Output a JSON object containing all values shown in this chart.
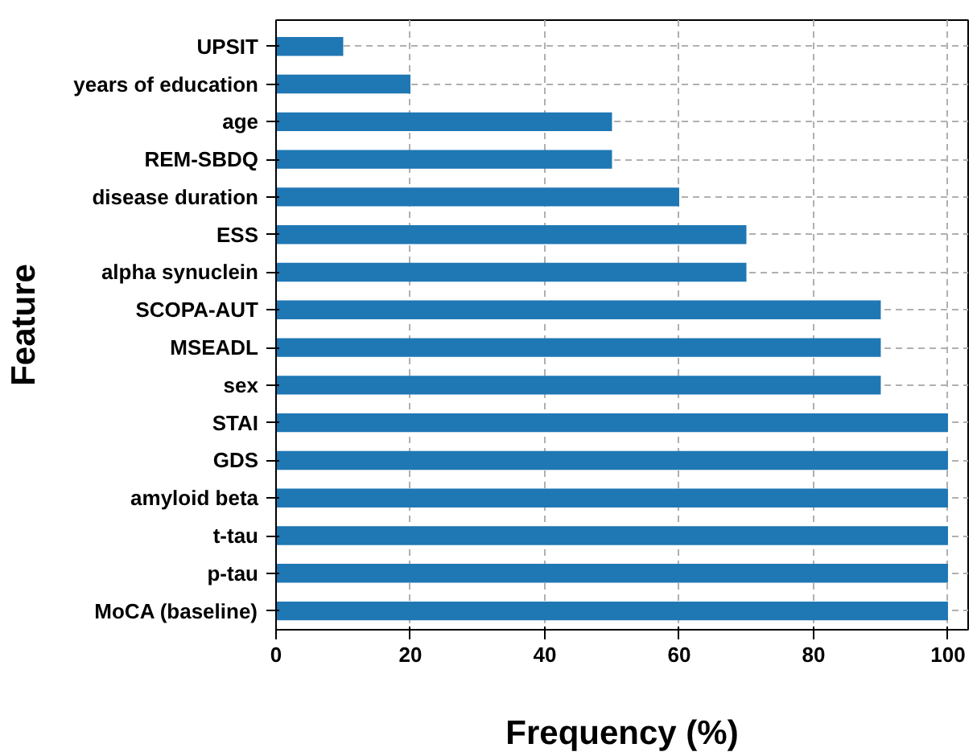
{
  "chart_data": {
    "type": "bar",
    "orientation": "horizontal",
    "xlabel": "Frequency (%)",
    "ylabel": "Feature",
    "categories": [
      "UPSIT",
      "years of education",
      "age",
      "REM-SBDQ",
      "disease duration",
      "ESS",
      "alpha synuclein",
      "SCOPA-AUT",
      "MSEADL",
      "sex",
      "STAI",
      "GDS",
      "amyloid beta",
      "t-tau",
      "p-tau",
      "MoCA (baseline)"
    ],
    "values": [
      10,
      20,
      50,
      50,
      60,
      70,
      70,
      90,
      90,
      90,
      100,
      100,
      100,
      100,
      100,
      100
    ],
    "color": "#1f77b4",
    "xlim": [
      0,
      103
    ],
    "xticks": [
      0,
      20,
      40,
      60,
      80,
      100
    ],
    "grid": true
  }
}
